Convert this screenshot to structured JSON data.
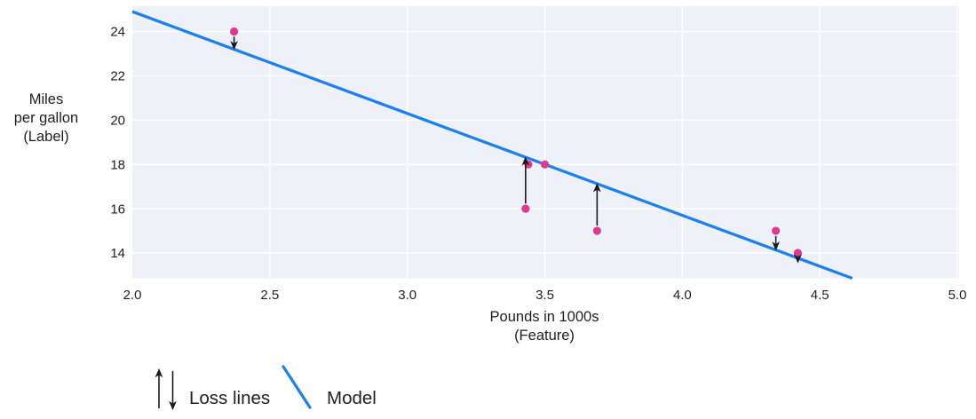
{
  "chart_data": {
    "type": "scatter",
    "title": "",
    "xlabel_lines": [
      "Pounds in 1000s",
      "(Feature)"
    ],
    "ylabel_lines": [
      "Miles",
      "per gallon",
      "(Label)"
    ],
    "x_ticks": {
      "values": [
        2.0,
        2.5,
        3.0,
        3.5,
        4.0,
        4.5,
        5.0
      ],
      "labels": [
        "2.0",
        "2.5",
        "3.0",
        "3.5",
        "4.0",
        "4.5",
        "5.0"
      ]
    },
    "y_ticks": {
      "values": [
        14,
        16,
        18,
        20,
        22,
        24
      ],
      "labels": [
        "14",
        "16",
        "18",
        "20",
        "22",
        "24"
      ]
    },
    "xlim": [
      2.0,
      5.0
    ],
    "ylim": [
      12.9,
      25.1
    ],
    "grid": true,
    "points": [
      {
        "x": 2.37,
        "y": 24,
        "loss_arrow": "down"
      },
      {
        "x": 3.44,
        "y": 18,
        "loss_arrow": null
      },
      {
        "x": 3.5,
        "y": 18,
        "loss_arrow": null
      },
      {
        "x": 3.43,
        "y": 16,
        "loss_arrow": "up"
      },
      {
        "x": 3.69,
        "y": 15,
        "loss_arrow": "up"
      },
      {
        "x": 4.34,
        "y": 15,
        "loss_arrow": "down"
      },
      {
        "x": 4.42,
        "y": 14,
        "loss_arrow": "down"
      }
    ],
    "model_line": {
      "slope": -4.6,
      "intercept": 34.1
    },
    "legend": {
      "position": "bottom-left",
      "items": [
        {
          "symbol": "loss-arrows",
          "label": "Loss lines"
        },
        {
          "symbol": "model-line",
          "label": "Model"
        }
      ]
    }
  },
  "colors": {
    "model_line": "#1f80f0",
    "data_point": "#e03a8c",
    "loss_arrow": "#1b1b1b",
    "plot_background": "#eef1f8",
    "gridline": "#ffffff",
    "text": "#1f1f1f"
  }
}
